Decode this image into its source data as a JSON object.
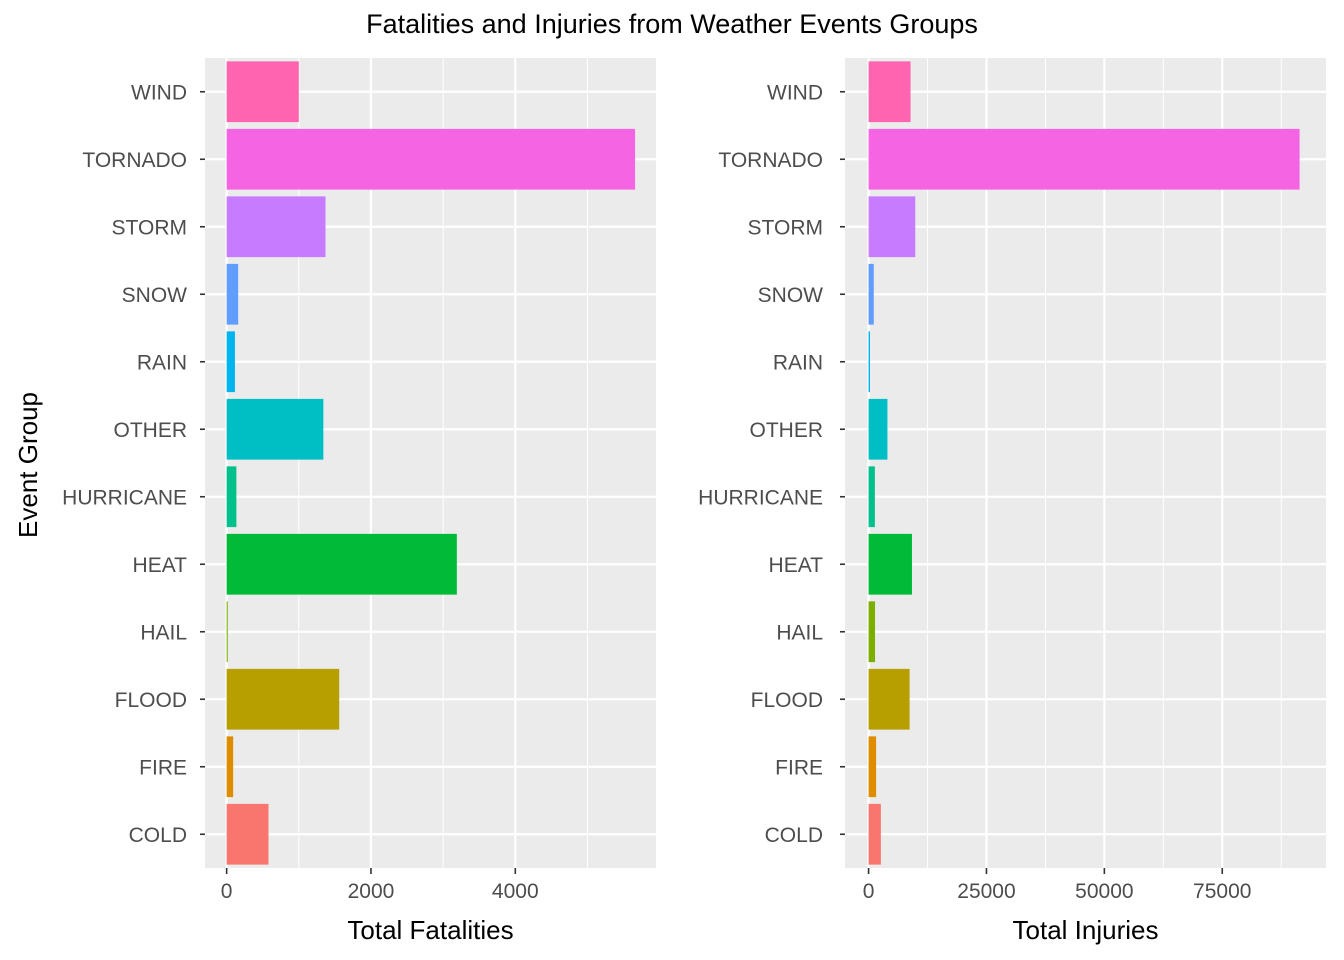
{
  "title": "Fatalities and Injuries from Weather Events Groups",
  "chart_data": [
    {
      "type": "bar",
      "orientation": "horizontal",
      "xlabel": "Total Fatalities",
      "ylabel": "Event Group",
      "categories": [
        "COLD",
        "FIRE",
        "FLOOD",
        "HAIL",
        "HEAT",
        "HURRICANE",
        "OTHER",
        "RAIN",
        "SNOW",
        "STORM",
        "TORNADO",
        "WIND"
      ],
      "values": [
        580,
        90,
        1560,
        15,
        3190,
        135,
        1340,
        115,
        160,
        1370,
        5660,
        1000
      ],
      "xlim": [
        -300,
        5950
      ],
      "xticks": [
        0,
        2000,
        4000
      ],
      "xtick_labels": [
        "0",
        "2000",
        "4000"
      ],
      "grid": true,
      "legend": "none"
    },
    {
      "type": "bar",
      "orientation": "horizontal",
      "xlabel": "Total Injuries",
      "ylabel": "",
      "categories": [
        "COLD",
        "FIRE",
        "FLOOD",
        "HAIL",
        "HEAT",
        "HURRICANE",
        "OTHER",
        "RAIN",
        "SNOW",
        "STORM",
        "TORNADO",
        "WIND"
      ],
      "values": [
        2600,
        1600,
        8700,
        1370,
        9200,
        1330,
        4000,
        300,
        1100,
        9900,
        91400,
        8900
      ],
      "xlim": [
        -5000,
        97000
      ],
      "xticks": [
        0,
        25000,
        50000,
        75000
      ],
      "xtick_labels": [
        "0",
        "25000",
        "50000",
        "75000"
      ],
      "grid": true,
      "legend": "none"
    }
  ],
  "colors": {
    "COLD": "#F8766D",
    "FIRE": "#DE8C00",
    "FLOOD": "#B79F00",
    "HAIL": "#7CAE00",
    "HEAT": "#00BA38",
    "HURRICANE": "#00C08B",
    "OTHER": "#00BFC4",
    "RAIN": "#00B4F0",
    "SNOW": "#619CFF",
    "STORM": "#C77CFF",
    "TORNADO": "#F564E3",
    "WIND": "#FF64B0",
    "panel_background": "#EBEBEB",
    "gridline": "#FFFFFF",
    "tick_text": "#4D4D4D"
  }
}
